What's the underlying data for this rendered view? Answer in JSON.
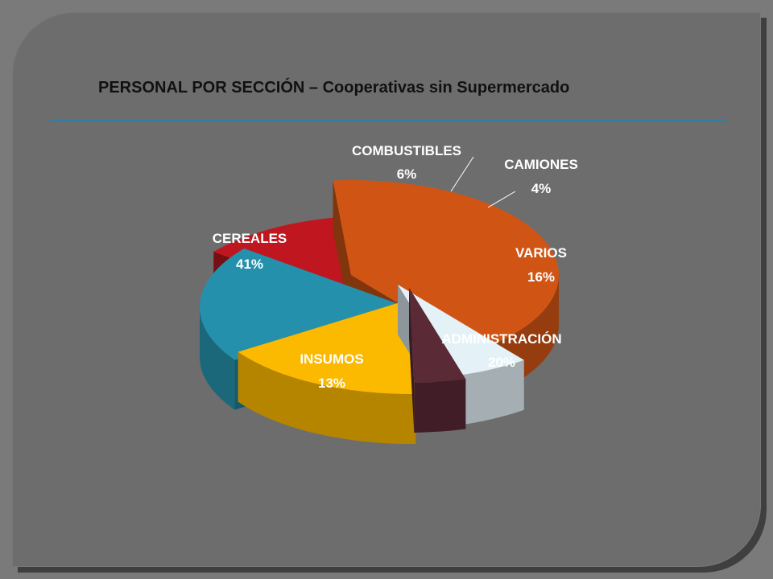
{
  "chart_data": {
    "type": "pie",
    "title": "PERSONAL POR SECCIÓN – Cooperativas sin Supermercado",
    "slices": [
      {
        "label": "CEREALES",
        "value": 41,
        "value_label": "41%",
        "color": "#d05515"
      },
      {
        "label": "COMBUSTIBLES",
        "value": 6,
        "value_label": "6%",
        "color": "#e4f2f8"
      },
      {
        "label": "CAMIONES",
        "value": 4,
        "value_label": "4%",
        "color": "#5a2a36"
      },
      {
        "label": "VARIOS",
        "value": 16,
        "value_label": "16%",
        "color": "#fbb900"
      },
      {
        "label": "ADMINISTRACIÓN",
        "value": 20,
        "value_label": "20%",
        "color": "#2590ab"
      },
      {
        "label": "INSUMOS",
        "value": 13,
        "value_label": "13%",
        "color": "#c0161f"
      }
    ],
    "exploded": true,
    "three_d": true,
    "legend": "none"
  }
}
